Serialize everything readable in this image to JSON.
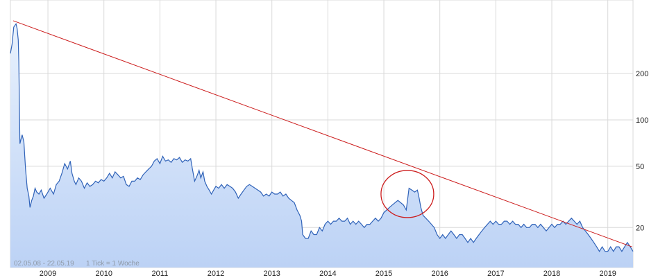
{
  "footer": {
    "date_range": "02.05.08 - 22.05.19",
    "tick_info": "1 Tick = 1 Woche"
  },
  "colors": {
    "price_line": "#2f62b8",
    "area_top": "#e8f1fd",
    "area_bottom": "#bcd2f5",
    "trendline": "#cc1c1c",
    "annotation": "#cc1c1c",
    "grid": "#d9d9d9"
  },
  "chart_data": {
    "type": "area",
    "y_scale": "log",
    "grid": true,
    "ylim": [
      11,
      600
    ],
    "xlim": [
      2008.33,
      2019.45
    ],
    "x_ticks": [
      "2009",
      "2010",
      "2011",
      "2012",
      "2013",
      "2014",
      "2015",
      "2016",
      "2017",
      "2018",
      "2019"
    ],
    "y_ticks": [
      "200",
      "100",
      "50",
      "20"
    ],
    "series": [
      {
        "values": [
          [
            2008.33,
            270
          ],
          [
            2008.36,
            310
          ],
          [
            2008.39,
            400
          ],
          [
            2008.43,
            420
          ],
          [
            2008.45,
            390
          ],
          [
            2008.47,
            330
          ],
          [
            2008.48,
            240
          ],
          [
            2008.5,
            70
          ],
          [
            2008.52,
            75
          ],
          [
            2008.54,
            80
          ],
          [
            2008.57,
            72
          ],
          [
            2008.6,
            48
          ],
          [
            2008.63,
            36
          ],
          [
            2008.66,
            32
          ],
          [
            2008.68,
            27
          ],
          [
            2008.71,
            30
          ],
          [
            2008.74,
            32
          ],
          [
            2008.77,
            36
          ],
          [
            2008.8,
            34
          ],
          [
            2008.84,
            33
          ],
          [
            2008.88,
            35
          ],
          [
            2008.93,
            31
          ],
          [
            2008.98,
            33
          ],
          [
            2009.04,
            36
          ],
          [
            2009.1,
            33
          ],
          [
            2009.15,
            38
          ],
          [
            2009.2,
            40
          ],
          [
            2009.25,
            45
          ],
          [
            2009.3,
            52
          ],
          [
            2009.35,
            48
          ],
          [
            2009.4,
            54
          ],
          [
            2009.43,
            45
          ],
          [
            2009.47,
            40
          ],
          [
            2009.5,
            38
          ],
          [
            2009.55,
            42
          ],
          [
            2009.6,
            40
          ],
          [
            2009.65,
            36
          ],
          [
            2009.7,
            39
          ],
          [
            2009.75,
            37
          ],
          [
            2009.8,
            38
          ],
          [
            2009.85,
            40
          ],
          [
            2009.9,
            39
          ],
          [
            2009.95,
            41
          ],
          [
            2010.0,
            40
          ],
          [
            2010.05,
            42
          ],
          [
            2010.1,
            45
          ],
          [
            2010.15,
            42
          ],
          [
            2010.2,
            46
          ],
          [
            2010.25,
            44
          ],
          [
            2010.3,
            42
          ],
          [
            2010.35,
            43
          ],
          [
            2010.4,
            38
          ],
          [
            2010.45,
            37
          ],
          [
            2010.5,
            40
          ],
          [
            2010.55,
            40
          ],
          [
            2010.6,
            42
          ],
          [
            2010.65,
            41
          ],
          [
            2010.7,
            44
          ],
          [
            2010.75,
            46
          ],
          [
            2010.8,
            48
          ],
          [
            2010.85,
            50
          ],
          [
            2010.9,
            54
          ],
          [
            2010.95,
            56
          ],
          [
            2011.0,
            52
          ],
          [
            2011.05,
            58
          ],
          [
            2011.1,
            54
          ],
          [
            2011.15,
            55
          ],
          [
            2011.2,
            53
          ],
          [
            2011.25,
            56
          ],
          [
            2011.3,
            55
          ],
          [
            2011.35,
            57
          ],
          [
            2011.4,
            53
          ],
          [
            2011.45,
            55
          ],
          [
            2011.5,
            54
          ],
          [
            2011.55,
            56
          ],
          [
            2011.58,
            48
          ],
          [
            2011.62,
            40
          ],
          [
            2011.66,
            43
          ],
          [
            2011.7,
            47
          ],
          [
            2011.73,
            42
          ],
          [
            2011.77,
            46
          ],
          [
            2011.8,
            40
          ],
          [
            2011.84,
            37
          ],
          [
            2011.88,
            35
          ],
          [
            2011.92,
            33
          ],
          [
            2011.96,
            35
          ],
          [
            2012.0,
            37
          ],
          [
            2012.05,
            36
          ],
          [
            2012.1,
            38
          ],
          [
            2012.15,
            36
          ],
          [
            2012.2,
            38
          ],
          [
            2012.25,
            37
          ],
          [
            2012.3,
            36
          ],
          [
            2012.35,
            34
          ],
          [
            2012.4,
            31
          ],
          [
            2012.45,
            33
          ],
          [
            2012.5,
            35
          ],
          [
            2012.55,
            37
          ],
          [
            2012.6,
            38
          ],
          [
            2012.65,
            37
          ],
          [
            2012.7,
            36
          ],
          [
            2012.75,
            35
          ],
          [
            2012.8,
            34
          ],
          [
            2012.85,
            32
          ],
          [
            2012.9,
            33
          ],
          [
            2012.95,
            32
          ],
          [
            2013.0,
            34
          ],
          [
            2013.05,
            33
          ],
          [
            2013.1,
            33
          ],
          [
            2013.15,
            34
          ],
          [
            2013.2,
            32
          ],
          [
            2013.25,
            33
          ],
          [
            2013.3,
            31
          ],
          [
            2013.35,
            30
          ],
          [
            2013.4,
            29
          ],
          [
            2013.45,
            26
          ],
          [
            2013.5,
            24
          ],
          [
            2013.53,
            22
          ],
          [
            2013.55,
            18
          ],
          [
            2013.6,
            17
          ],
          [
            2013.65,
            17
          ],
          [
            2013.7,
            19
          ],
          [
            2013.75,
            18
          ],
          [
            2013.8,
            18
          ],
          [
            2013.85,
            20
          ],
          [
            2013.9,
            19
          ],
          [
            2013.95,
            21
          ],
          [
            2014.0,
            22
          ],
          [
            2014.05,
            21
          ],
          [
            2014.1,
            22
          ],
          [
            2014.15,
            22
          ],
          [
            2014.2,
            23
          ],
          [
            2014.25,
            22
          ],
          [
            2014.3,
            22
          ],
          [
            2014.35,
            23
          ],
          [
            2014.4,
            21
          ],
          [
            2014.45,
            22
          ],
          [
            2014.5,
            21
          ],
          [
            2014.55,
            22
          ],
          [
            2014.6,
            21
          ],
          [
            2014.65,
            20
          ],
          [
            2014.7,
            21
          ],
          [
            2014.75,
            21
          ],
          [
            2014.8,
            22
          ],
          [
            2014.85,
            23
          ],
          [
            2014.9,
            22
          ],
          [
            2014.95,
            23
          ],
          [
            2015.0,
            25
          ],
          [
            2015.05,
            26
          ],
          [
            2015.1,
            27
          ],
          [
            2015.15,
            28
          ],
          [
            2015.2,
            29
          ],
          [
            2015.25,
            30
          ],
          [
            2015.3,
            29
          ],
          [
            2015.35,
            28
          ],
          [
            2015.4,
            26
          ],
          [
            2015.45,
            36
          ],
          [
            2015.5,
            35
          ],
          [
            2015.55,
            34
          ],
          [
            2015.6,
            35
          ],
          [
            2015.63,
            31
          ],
          [
            2015.66,
            27
          ],
          [
            2015.7,
            24
          ],
          [
            2015.75,
            23
          ],
          [
            2015.8,
            22
          ],
          [
            2015.85,
            21
          ],
          [
            2015.9,
            20
          ],
          [
            2015.95,
            18
          ],
          [
            2016.0,
            17
          ],
          [
            2016.05,
            18
          ],
          [
            2016.1,
            17
          ],
          [
            2016.15,
            18
          ],
          [
            2016.2,
            19
          ],
          [
            2016.25,
            18
          ],
          [
            2016.3,
            17
          ],
          [
            2016.35,
            18
          ],
          [
            2016.4,
            18
          ],
          [
            2016.45,
            17
          ],
          [
            2016.5,
            16
          ],
          [
            2016.55,
            17
          ],
          [
            2016.6,
            16
          ],
          [
            2016.65,
            17
          ],
          [
            2016.7,
            18
          ],
          [
            2016.75,
            19
          ],
          [
            2016.8,
            20
          ],
          [
            2016.85,
            21
          ],
          [
            2016.9,
            22
          ],
          [
            2016.95,
            21
          ],
          [
            2017.0,
            22
          ],
          [
            2017.05,
            21
          ],
          [
            2017.1,
            21
          ],
          [
            2017.15,
            22
          ],
          [
            2017.2,
            22
          ],
          [
            2017.25,
            21
          ],
          [
            2017.3,
            22
          ],
          [
            2017.35,
            21
          ],
          [
            2017.4,
            21
          ],
          [
            2017.45,
            20
          ],
          [
            2017.5,
            21
          ],
          [
            2017.55,
            20
          ],
          [
            2017.6,
            20
          ],
          [
            2017.65,
            21
          ],
          [
            2017.7,
            21
          ],
          [
            2017.75,
            20
          ],
          [
            2017.8,
            21
          ],
          [
            2017.85,
            20
          ],
          [
            2017.9,
            19
          ],
          [
            2017.95,
            20
          ],
          [
            2018.0,
            21
          ],
          [
            2018.05,
            20
          ],
          [
            2018.1,
            21
          ],
          [
            2018.15,
            21
          ],
          [
            2018.2,
            22
          ],
          [
            2018.25,
            21
          ],
          [
            2018.3,
            22
          ],
          [
            2018.35,
            23
          ],
          [
            2018.4,
            22
          ],
          [
            2018.45,
            21
          ],
          [
            2018.5,
            22
          ],
          [
            2018.55,
            20
          ],
          [
            2018.6,
            19
          ],
          [
            2018.65,
            18
          ],
          [
            2018.7,
            17
          ],
          [
            2018.75,
            16
          ],
          [
            2018.8,
            15
          ],
          [
            2018.85,
            14
          ],
          [
            2018.9,
            15
          ],
          [
            2018.95,
            14
          ],
          [
            2019.0,
            14
          ],
          [
            2019.05,
            15
          ],
          [
            2019.1,
            14
          ],
          [
            2019.15,
            15
          ],
          [
            2019.2,
            15
          ],
          [
            2019.25,
            14
          ],
          [
            2019.3,
            15
          ],
          [
            2019.35,
            16
          ],
          [
            2019.4,
            15
          ],
          [
            2019.45,
            14
          ]
        ]
      }
    ],
    "trendline": [
      [
        2008.38,
        440
      ],
      [
        2019.43,
        15
      ]
    ],
    "annotation_circle": [
      2015.42,
      33
    ]
  }
}
